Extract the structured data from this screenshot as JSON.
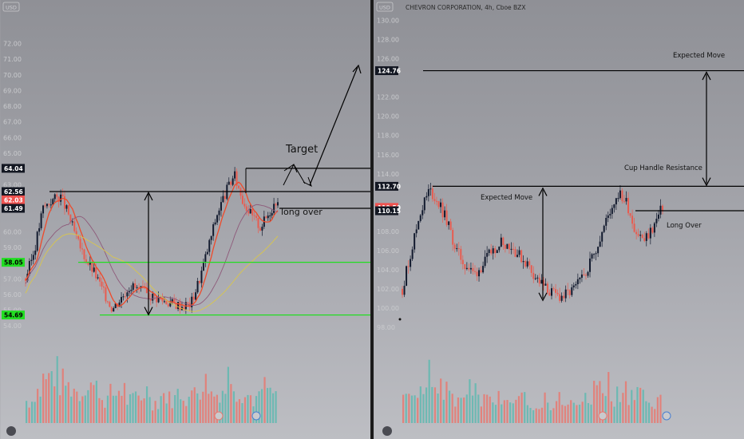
{
  "chart_data": [
    {
      "type": "candlestick",
      "title": "",
      "currency_badge": "USD",
      "ylim": [
        53.4,
        73.5
      ],
      "y_ticks": [
        "72.00",
        "71.00",
        "70.00",
        "69.00",
        "68.00",
        "67.00",
        "66.00",
        "65.00",
        "63.00",
        "60.00",
        "59.00",
        "58.00",
        "57.00",
        "56.00",
        "55.00",
        "54.00"
      ],
      "price_tags": [
        {
          "value": "64.04",
          "bg": "#131722",
          "fg": "#ffffff"
        },
        {
          "value": "62.56",
          "bg": "#131722",
          "fg": "#ffffff"
        },
        {
          "value": "62.03",
          "bg": "#ef5350",
          "fg": "#ffffff"
        },
        {
          "value": "61.49",
          "bg": "#131722",
          "fg": "#ffffff"
        },
        {
          "value": "58.05",
          "bg": "#22dd22",
          "fg": "#000000"
        },
        {
          "value": "54.69",
          "bg": "#22dd22",
          "fg": "#000000"
        }
      ],
      "levels": [
        {
          "name": "resistance",
          "value": 62.56,
          "color": "#000000"
        },
        {
          "name": "long-over",
          "value": 61.49,
          "color": "#000000"
        },
        {
          "name": "target-box",
          "value": 64.04,
          "color": "#000000"
        },
        {
          "name": "upper-support",
          "value": 58.05,
          "color": "#22dd22"
        },
        {
          "name": "lower-support",
          "value": 54.69,
          "color": "#22dd22"
        }
      ],
      "annotations": [
        "Target",
        "long over"
      ],
      "series": [
        {
          "name": "price",
          "close": [
            57.0,
            58.8,
            61.5,
            62.0,
            62.3,
            61.0,
            59.3,
            58.2,
            57.3,
            56.1,
            55.1,
            55.8,
            56.6,
            56.3,
            56.0,
            55.8,
            55.6,
            55.4,
            55.3,
            55.4,
            57.0,
            59.0,
            61.1,
            62.5,
            63.6,
            62.0,
            61.0,
            60.3,
            61.2,
            62.2
          ]
        },
        {
          "name": "ema-fast",
          "color": "#ef4a2a"
        },
        {
          "name": "sma-slow",
          "color": "#8e5a7a"
        },
        {
          "name": "sma-long",
          "color": "#d9c64c"
        }
      ],
      "volume": [
        28,
        40,
        55,
        62,
        50,
        45,
        38,
        52,
        44,
        30,
        36,
        42,
        28,
        33,
        40,
        26,
        35,
        30,
        38,
        32,
        45,
        50,
        36,
        42,
        60,
        40,
        34,
        30,
        44,
        36
      ]
    },
    {
      "type": "candlestick",
      "title": "CHEVRON CORPORATION, 4h, Cboe BZX",
      "currency_badge": "USD",
      "ylim": [
        95.5,
        131.3
      ],
      "y_ticks": [
        "130.00",
        "128.00",
        "126.00",
        "122.00",
        "120.00",
        "118.00",
        "116.00",
        "114.00",
        "108.00",
        "106.00",
        "104.00",
        "102.00",
        "100.00",
        "98.00"
      ],
      "price_tags": [
        {
          "value": "124.76",
          "bg": "#131722",
          "fg": "#ffffff"
        },
        {
          "value": "112.70",
          "bg": "#131722",
          "fg": "#ffffff"
        },
        {
          "value": "110.50",
          "bg": "#ef5350",
          "fg": "#ffffff"
        },
        {
          "value": "110.15",
          "bg": "#131722",
          "fg": "#ffffff"
        }
      ],
      "levels": [
        {
          "name": "expected-move-target",
          "value": 124.76,
          "color": "#000000"
        },
        {
          "name": "cup-handle-resistance",
          "value": 112.7,
          "color": "#000000"
        },
        {
          "name": "long-over",
          "value": 110.15,
          "color": "#000000"
        }
      ],
      "annotations": [
        "Expected Move",
        "Cup Handle Resistance",
        "Expected Move",
        "Long Over"
      ],
      "series": [
        {
          "name": "price",
          "close": [
            102,
            106,
            110,
            112.3,
            111,
            109,
            106,
            104.5,
            103.5,
            104.5,
            106,
            107,
            106.5,
            105.5,
            104.5,
            103,
            102,
            101.3,
            101.2,
            101.8,
            103,
            105,
            107.2,
            109.8,
            112,
            111,
            108,
            107,
            108.5,
            110.5
          ]
        }
      ],
      "volume": [
        30,
        35,
        48,
        58,
        42,
        38,
        30,
        45,
        38,
        28,
        26,
        34,
        40,
        30,
        28,
        25,
        32,
        22,
        30,
        24,
        28,
        35,
        42,
        46,
        34,
        38,
        30,
        36,
        32,
        28
      ]
    }
  ]
}
